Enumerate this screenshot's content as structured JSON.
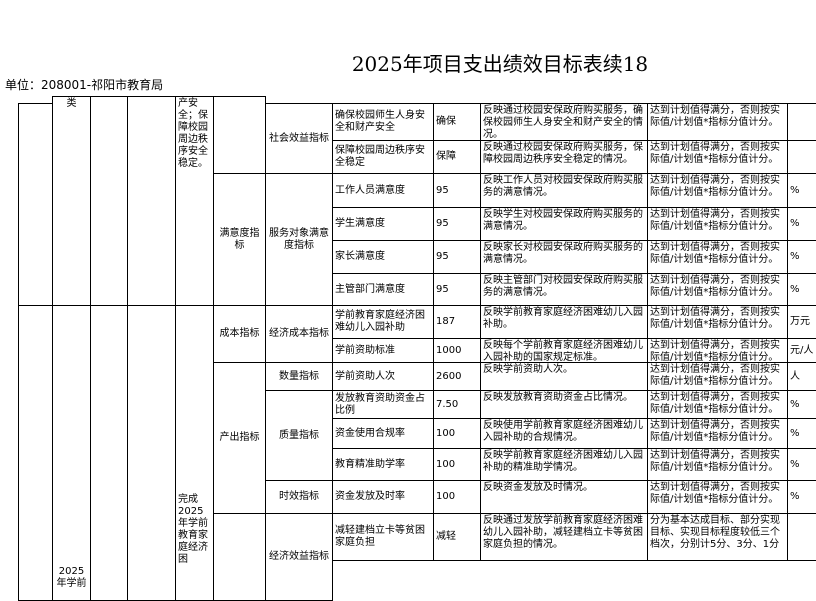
{
  "title": "2025年项目支出绩效目标表续18",
  "unit": "单位：208001-祁阳市教育局",
  "table": {
    "left_fragments": [
      "类",
      "2025年学前"
    ],
    "goal_texts": [
      "产安全；保障校园周边秩序安全稳定。",
      "完成2025年学前教育家庭经济困"
    ],
    "level1": [
      "满意度指标",
      "成本指标",
      "产出指标"
    ],
    "level2": [
      "社会效益指标",
      "服务对象满意度指标",
      "经济成本指标",
      "数量指标",
      "质量指标",
      "时效指标",
      "经济效益指标"
    ],
    "rows": [
      [
        "确保校园师生人身安全和财产安全",
        "确保",
        "反映通过校园安保政府购买服务，确保校园师生人身安全和财产安全的情况。",
        "达到计划值得满分，否则按实际值/计划值*指标分值计分。"
      ],
      [
        "保障校园周边秩序安全稳定",
        "保障",
        "反映通过校园安保政府购买服务，保障校园周边秩序安全稳定的情况。",
        "达到计划值得满分，否则按实际值/计划值*指标分值计分。"
      ],
      [
        "工作人员满意度",
        "95",
        "反映工作人员对校园安保政府购买服务的满意情况。",
        "达到计划值得满分，否则按实际值/计划值*指标分值计分。",
        "%"
      ],
      [
        "学生满意度",
        "95",
        "反映学生对校园安保政府购买服务的满意情况。",
        "达到计划值得满分，否则按实际值/计划值*指标分值计分。",
        "%"
      ],
      [
        "家长满意度",
        "95",
        "反映家长对校园安保政府购买服务的满意情况。",
        "达到计划值得满分，否则按实际值/计划值*指标分值计分。",
        "%"
      ],
      [
        "主管部门满意度",
        "95",
        "反映主管部门对校园安保政府购买服务的满意情况。",
        "达到计划值得满分，否则按实际值/计划值*指标分值计分。",
        "%"
      ],
      [
        "学前教育家庭经济困难幼儿入园补助",
        "187",
        "反映学前教育家庭经济困难幼儿入园补助。",
        "达到计划值得满分，否则按实际值/计划值*指标分值计分。",
        "万元"
      ],
      [
        "学前资助标准",
        "1000",
        "反映每个学前教育家庭经济困难幼儿入园补助的国家规定标准。",
        "达到计划值得满分，否则按实际值/计划值*指标分值计分。",
        "元/人"
      ],
      [
        "学前资助人次",
        "2600",
        "反映学前资助人次。",
        "达到计划值得满分，否则按实际值/计划值*指标分值计分。",
        "人"
      ],
      [
        "发放教育资助资金占比例",
        "7.50",
        "反映发放教育资助资金占比情况。",
        "达到计划值得满分，否则按实际值/计划值*指标分值计分。",
        "%"
      ],
      [
        "资金使用合规率",
        "100",
        "反映使用学前教育家庭经济困难幼儿入园补助的合规情况。",
        "达到计划值得满分，否则按实际值/计划值*指标分值计分。",
        "%"
      ],
      [
        "教育精准助学率",
        "100",
        "反映学前教育家庭经济困难幼儿入园补助的精准助学情况。",
        "达到计划值得满分，否则按实际值/计划值*指标分值计分。",
        "%"
      ],
      [
        "资金发放及时率",
        "100",
        "反映资金发放及时情况。",
        "达到计划值得满分，否则按实际值/计划值*指标分值计分。",
        "%"
      ],
      [
        "减轻建档立卡等贫困家庭负担",
        "减轻",
        "反映通过发放学前教育家庭经济困难幼儿入园补助，减轻建档立卡等贫困家庭负担的情况。",
        "分为基本达成目标、部分实现目标、实现目标程度较低三个档次，分别计5分、3分、1分"
      ]
    ]
  }
}
